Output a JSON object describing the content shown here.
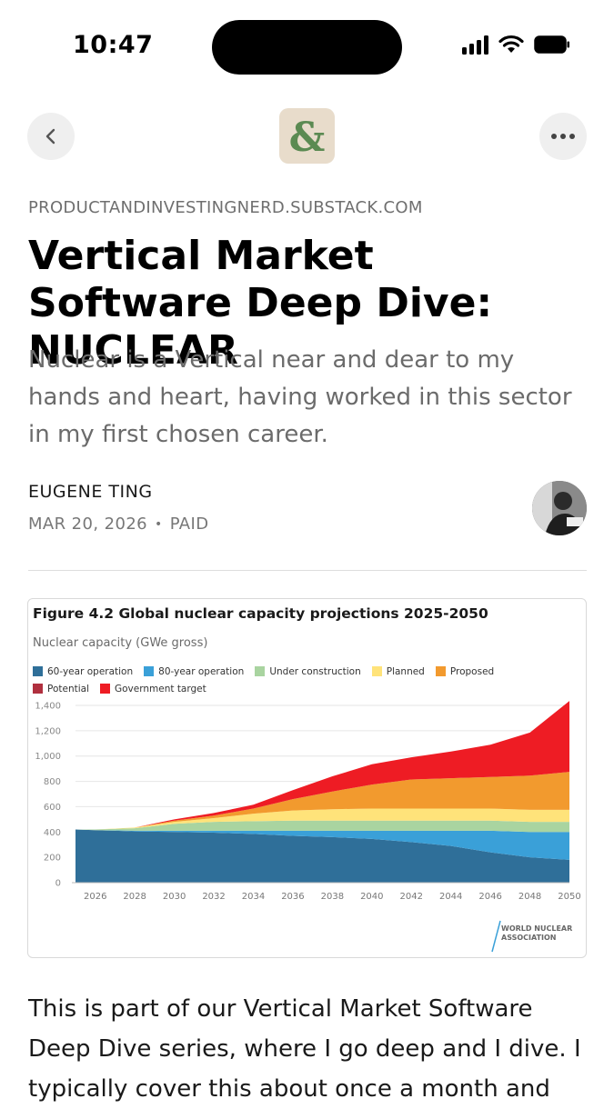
{
  "status_bar": {
    "time": "10:47"
  },
  "nav": {
    "publication_logo_glyph": "&"
  },
  "article": {
    "domain": "PRODUCTANDINVESTINGNERD.SUBSTACK.COM",
    "title": "Vertical Market Software Deep Dive: NUCLEAR",
    "subtitle": "Nuclear is a Vertical near and dear to my hands and heart, having worked in this sector in my first chosen career.",
    "author": "EUGENE TING",
    "date": "MAR 20, 2026",
    "separator": "•",
    "access": "PAID",
    "body_start": "This is part of our Vertical Market Software Deep Dive series, where I go deep and I dive. I typically cover this about once a month and"
  },
  "figure": {
    "watermark_text": [
      "WORLD NUCLEAR",
      "ASSOCIATION"
    ]
  },
  "chart_data": {
    "type": "area",
    "title": "Figure 4.2 Global nuclear capacity projections 2025-2050",
    "ylabel": "Nuclear capacity (GWe gross)",
    "xlabel": "",
    "ylim": [
      0,
      1400
    ],
    "yticks": [
      0,
      200,
      400,
      600,
      800,
      1000,
      1200,
      1400
    ],
    "x": [
      2025,
      2026,
      2028,
      2030,
      2032,
      2034,
      2036,
      2038,
      2040,
      2042,
      2044,
      2046,
      2048,
      2050
    ],
    "xtick_labels": [
      "2026",
      "2028",
      "2030",
      "2032",
      "2034",
      "2036",
      "2038",
      "2040",
      "2042",
      "2044",
      "2046",
      "2048",
      "2050"
    ],
    "stacked": true,
    "grid": true,
    "legend_position": "top",
    "series": [
      {
        "name": "60-year operation",
        "color": "#2f6f99",
        "values": [
          420,
          415,
          405,
          400,
          395,
          385,
          370,
          360,
          345,
          320,
          290,
          240,
          200,
          180
        ]
      },
      {
        "name": "80-year operation",
        "color": "#3aa0d8",
        "values": [
          0,
          0,
          5,
          10,
          15,
          25,
          40,
          50,
          65,
          90,
          120,
          170,
          200,
          220
        ]
      },
      {
        "name": "Under construction",
        "color": "#a9d4a0",
        "values": [
          0,
          5,
          20,
          55,
          70,
          75,
          80,
          80,
          80,
          80,
          80,
          80,
          80,
          80
        ]
      },
      {
        "name": "Planned",
        "color": "#ffe37a",
        "values": [
          0,
          0,
          5,
          15,
          30,
          60,
          80,
          90,
          95,
          95,
          95,
          95,
          95,
          95
        ]
      },
      {
        "name": "Proposed",
        "color": "#f29a2e",
        "values": [
          0,
          0,
          0,
          10,
          20,
          40,
          90,
          140,
          190,
          230,
          240,
          250,
          270,
          300
        ]
      },
      {
        "name": "Potential",
        "color": "#b0303f",
        "values": [
          0,
          0,
          0,
          0,
          0,
          0,
          0,
          0,
          0,
          0,
          0,
          0,
          0,
          0
        ]
      },
      {
        "name": "Government target",
        "color": "#ee1c24",
        "values": [
          0,
          0,
          0,
          10,
          20,
          30,
          70,
          120,
          160,
          175,
          210,
          255,
          340,
          560
        ]
      }
    ]
  },
  "colors": {
    "text_primary": "#111111",
    "text_secondary": "#6b6b6b",
    "button_bg": "#efefef",
    "logo_bg": "#e8dccb",
    "logo_fg": "#5b8a52",
    "divider": "#dddddd"
  },
  "icons": {
    "back": "chevron-left-icon",
    "more": "more-horizontal-icon",
    "signal": "cellular-signal-icon",
    "wifi": "wifi-icon",
    "battery": "battery-icon"
  }
}
